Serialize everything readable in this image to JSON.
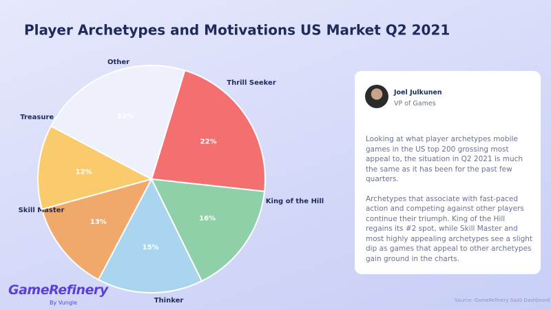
{
  "chart_data": {
    "type": "pie",
    "title": "Player Archetypes and Motivations US Market Q2 2021",
    "categories": [
      "Thrill Seeker",
      "King of the Hill",
      "Thinker",
      "Skill Master",
      "Treasure Hunter",
      "Other"
    ],
    "values": [
      22,
      16,
      15,
      13,
      12,
      22
    ],
    "value_labels": [
      "22%",
      "16%",
      "15%",
      "13%",
      "12%",
      "22%"
    ],
    "colors": [
      "#f46f70",
      "#90d0a9",
      "#a9d5ee",
      "#f0a96a",
      "#f9cb6c",
      "#eef0fb"
    ]
  },
  "quote": {
    "name": "Joel Julkunen",
    "role": "VP of Games",
    "paragraphs": [
      "Looking at what player archetypes mobile games in the US top 200 grossing most appeal to, the situation in Q2 2021 is much the same as it has been for the past few quarters.",
      "Archetypes that associate with fast-paced action and competing against other players continue their triumph. King of the Hill regains its #2 spot, while Skill Master and most highly appealing archetypes see a slight dip as games that appeal to other archetypes gain ground in the charts."
    ]
  },
  "logo": {
    "name": "GameRefinery",
    "tagline": "By Vungle"
  },
  "source": "Source: GameRefinery SaaS Dashboard"
}
